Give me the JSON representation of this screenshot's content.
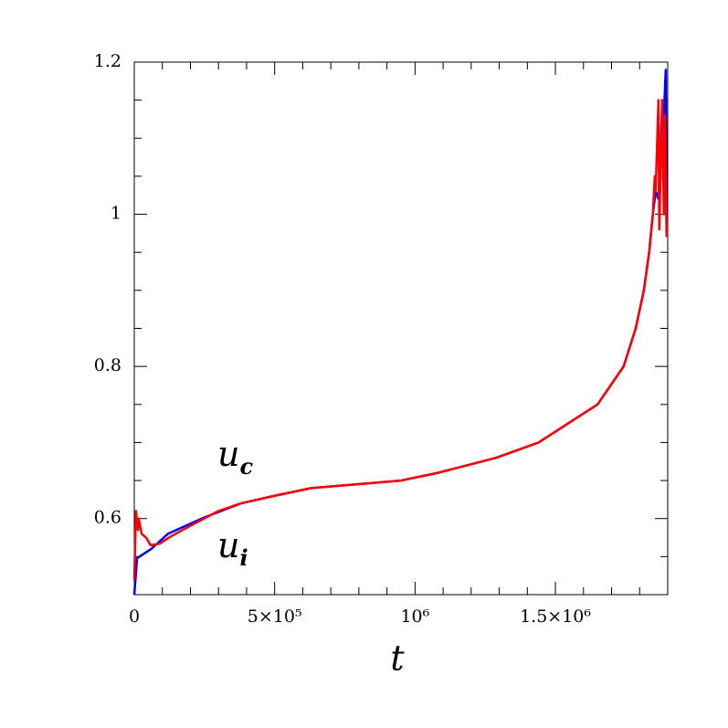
{
  "chart_data": {
    "type": "line",
    "xlabel": "t",
    "annotations": [
      {
        "text": "u",
        "subscript": "c"
      },
      {
        "text": "u",
        "subscript": "i"
      }
    ],
    "xlim": [
      0,
      1900000
    ],
    "ylim": [
      0.5,
      1.2
    ],
    "xticks": [
      0,
      {
        "value": 500000,
        "label": "5×10⁵"
      },
      {
        "value": 1000000,
        "label": "10⁶"
      },
      {
        "value": 1500000,
        "label": "1.5×10⁶"
      }
    ],
    "yticks": [
      0.6,
      0.8,
      1,
      1.2
    ],
    "xminorticks": [
      100000,
      200000,
      300000,
      400000,
      600000,
      700000,
      800000,
      900000,
      1100000,
      1200000,
      1300000,
      1400000,
      1600000,
      1700000,
      1800000
    ],
    "yminorticks": [
      0.55,
      0.65,
      0.7,
      0.75,
      0.85,
      0.9,
      0.95,
      1.05,
      1.1,
      1.15
    ],
    "series": [
      {
        "name": "u_i",
        "color": "#0000ff",
        "x": [
          0,
          10000,
          60000,
          120000,
          240000,
          380000,
          500000,
          630000,
          950000,
          1080000,
          1290000,
          1440000,
          1650000,
          1743000,
          1786000,
          1815000,
          1834000,
          1847000,
          1857000,
          1867000,
          1880000,
          1883000,
          1893000,
          1896000
        ],
        "values": [
          0.5,
          0.548,
          0.56,
          0.58,
          0.6,
          0.62,
          0.63,
          0.64,
          0.65,
          0.66,
          0.68,
          0.7,
          0.75,
          0.8,
          0.85,
          0.9,
          0.95,
          1.0,
          1.03,
          1.02,
          1.14,
          1.1,
          1.19,
          0.98
        ]
      },
      {
        "name": "u_c",
        "color": "#ff0000",
        "x": [
          0,
          6000,
          13000,
          16000,
          26000,
          42000,
          58000,
          91000,
          123000,
          172000,
          300000,
          380000,
          500000,
          630000,
          950000,
          1080000,
          1290000,
          1440000,
          1650000,
          1743000,
          1786000,
          1815000,
          1834000,
          1847000,
          1854000,
          1857000,
          1867000,
          1870000,
          1880000,
          1886000,
          1890000,
          1896000
        ],
        "values": [
          0.52,
          0.61,
          0.585,
          0.6,
          0.58,
          0.575,
          0.565,
          0.567,
          0.575,
          0.585,
          0.61,
          0.62,
          0.63,
          0.64,
          0.65,
          0.66,
          0.68,
          0.7,
          0.75,
          0.8,
          0.85,
          0.9,
          0.95,
          1.0,
          1.05,
          1.03,
          1.15,
          0.98,
          1.15,
          1.0,
          1.13,
          0.97
        ]
      }
    ]
  }
}
